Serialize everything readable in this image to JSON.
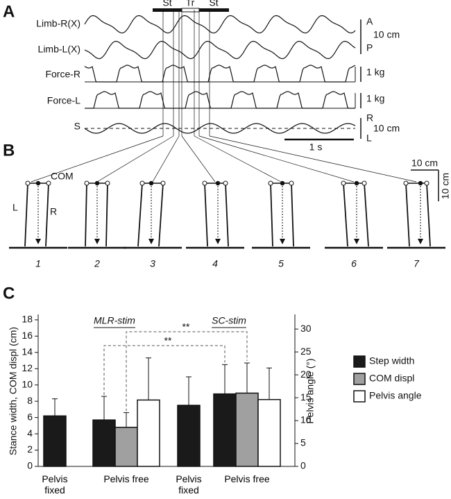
{
  "panel_a": {
    "label": "A",
    "traces": [
      "Limb-R(X)",
      "Limb-L(X)",
      "Force-R",
      "Force-L",
      "S"
    ],
    "phases": [
      "St",
      "Tr",
      "St"
    ],
    "scale_labels": [
      "A",
      "10 cm",
      "P",
      "1 kg",
      "1 kg",
      "R",
      "10 cm",
      "L",
      "1 s"
    ]
  },
  "panel_b": {
    "label": "B",
    "com": "COM",
    "left": "L",
    "right": "R",
    "scale_labels": [
      "10 cm",
      "10 cm"
    ],
    "frames": [
      "1",
      "2",
      "3",
      "4",
      "5",
      "6",
      "7"
    ]
  },
  "chart_data": {
    "type": "bar",
    "label": "C",
    "categories": [
      "Pelvis fixed",
      "Pelvis free",
      "Pelvis fixed",
      "Pelvis free"
    ],
    "groups": [
      "MLR-stim",
      "SC-stim"
    ],
    "significance": [
      "**",
      "**"
    ],
    "y_label": "Stance width, COM displ (cm)",
    "y2_label": "Pelvis angle (°)",
    "ylim": [
      0,
      18.5
    ],
    "yticks": [
      0,
      2,
      4,
      6,
      8,
      10,
      12,
      14,
      16,
      18
    ],
    "y2lim": [
      0,
      32.9
    ],
    "y2ticks": [
      0,
      5,
      10,
      15,
      20,
      25,
      30
    ],
    "legend": "right",
    "series": [
      {
        "name": "Step width",
        "color": "#1a1a1a",
        "values": [
          6.2,
          5.7,
          7.5,
          8.9
        ],
        "errors": [
          2.1,
          2.9,
          3.5,
          3.6
        ]
      },
      {
        "name": "COM displ",
        "color": "#a0a0a0",
        "values": [
          null,
          4.8,
          null,
          9.0
        ],
        "errors": [
          null,
          1.8,
          null,
          3.7
        ]
      },
      {
        "name": "Pelvis angle",
        "color": "#ffffff",
        "axis": "y2",
        "values": [
          null,
          14.5,
          null,
          14.6
        ],
        "errors": [
          null,
          9.2,
          null,
          6.9
        ]
      }
    ]
  }
}
